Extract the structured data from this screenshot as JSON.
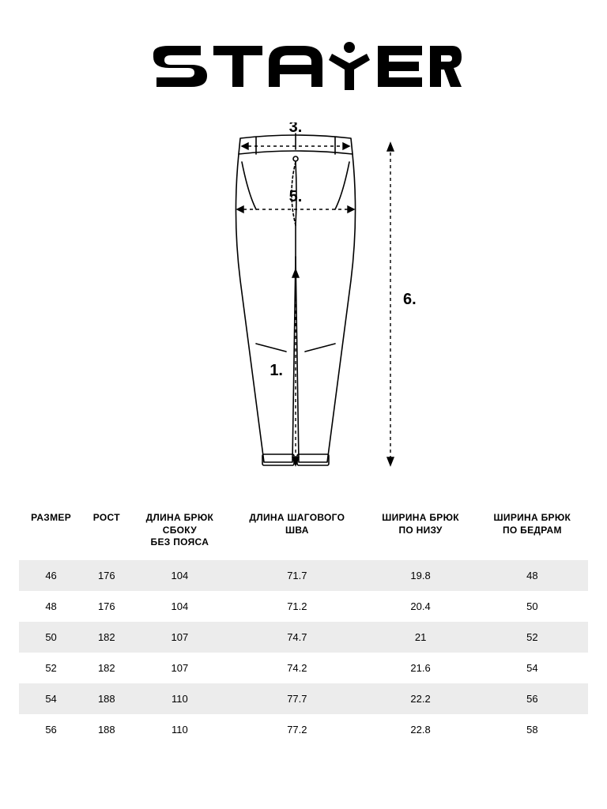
{
  "brand": "stayer",
  "diagram": {
    "type": "infographic",
    "labels": {
      "waist": "3.",
      "hip": "5.",
      "inseam": "1.",
      "outseam": "6."
    },
    "colors": {
      "stroke": "#000000",
      "dash": "#000000",
      "background": "#ffffff"
    },
    "label_fontsize": 20
  },
  "table": {
    "header_fontsize": 12,
    "body_fontsize": 13,
    "stripe_color": "#ececec",
    "columns": [
      "РАЗМЕР",
      "РОСТ",
      "ДЛИНА БРЮК\nСБОКУ\nБЕЗ ПОЯСА",
      "ДЛИНА ШАГОВОГО\nШВА",
      "ШИРИНА БРЮК\nПО НИЗУ",
      "ШИРИНА БРЮК\nПО БЕДРАМ"
    ],
    "rows": [
      [
        "46",
        "176",
        "104",
        "71.7",
        "19.8",
        "48"
      ],
      [
        "48",
        "176",
        "104",
        "71.2",
        "20.4",
        "50"
      ],
      [
        "50",
        "182",
        "107",
        "74.7",
        "21",
        "52"
      ],
      [
        "52",
        "182",
        "107",
        "74.2",
        "21.6",
        "54"
      ],
      [
        "54",
        "188",
        "110",
        "77.7",
        "22.2",
        "56"
      ],
      [
        "56",
        "188",
        "110",
        "77.2",
        "22.8",
        "58"
      ]
    ]
  }
}
